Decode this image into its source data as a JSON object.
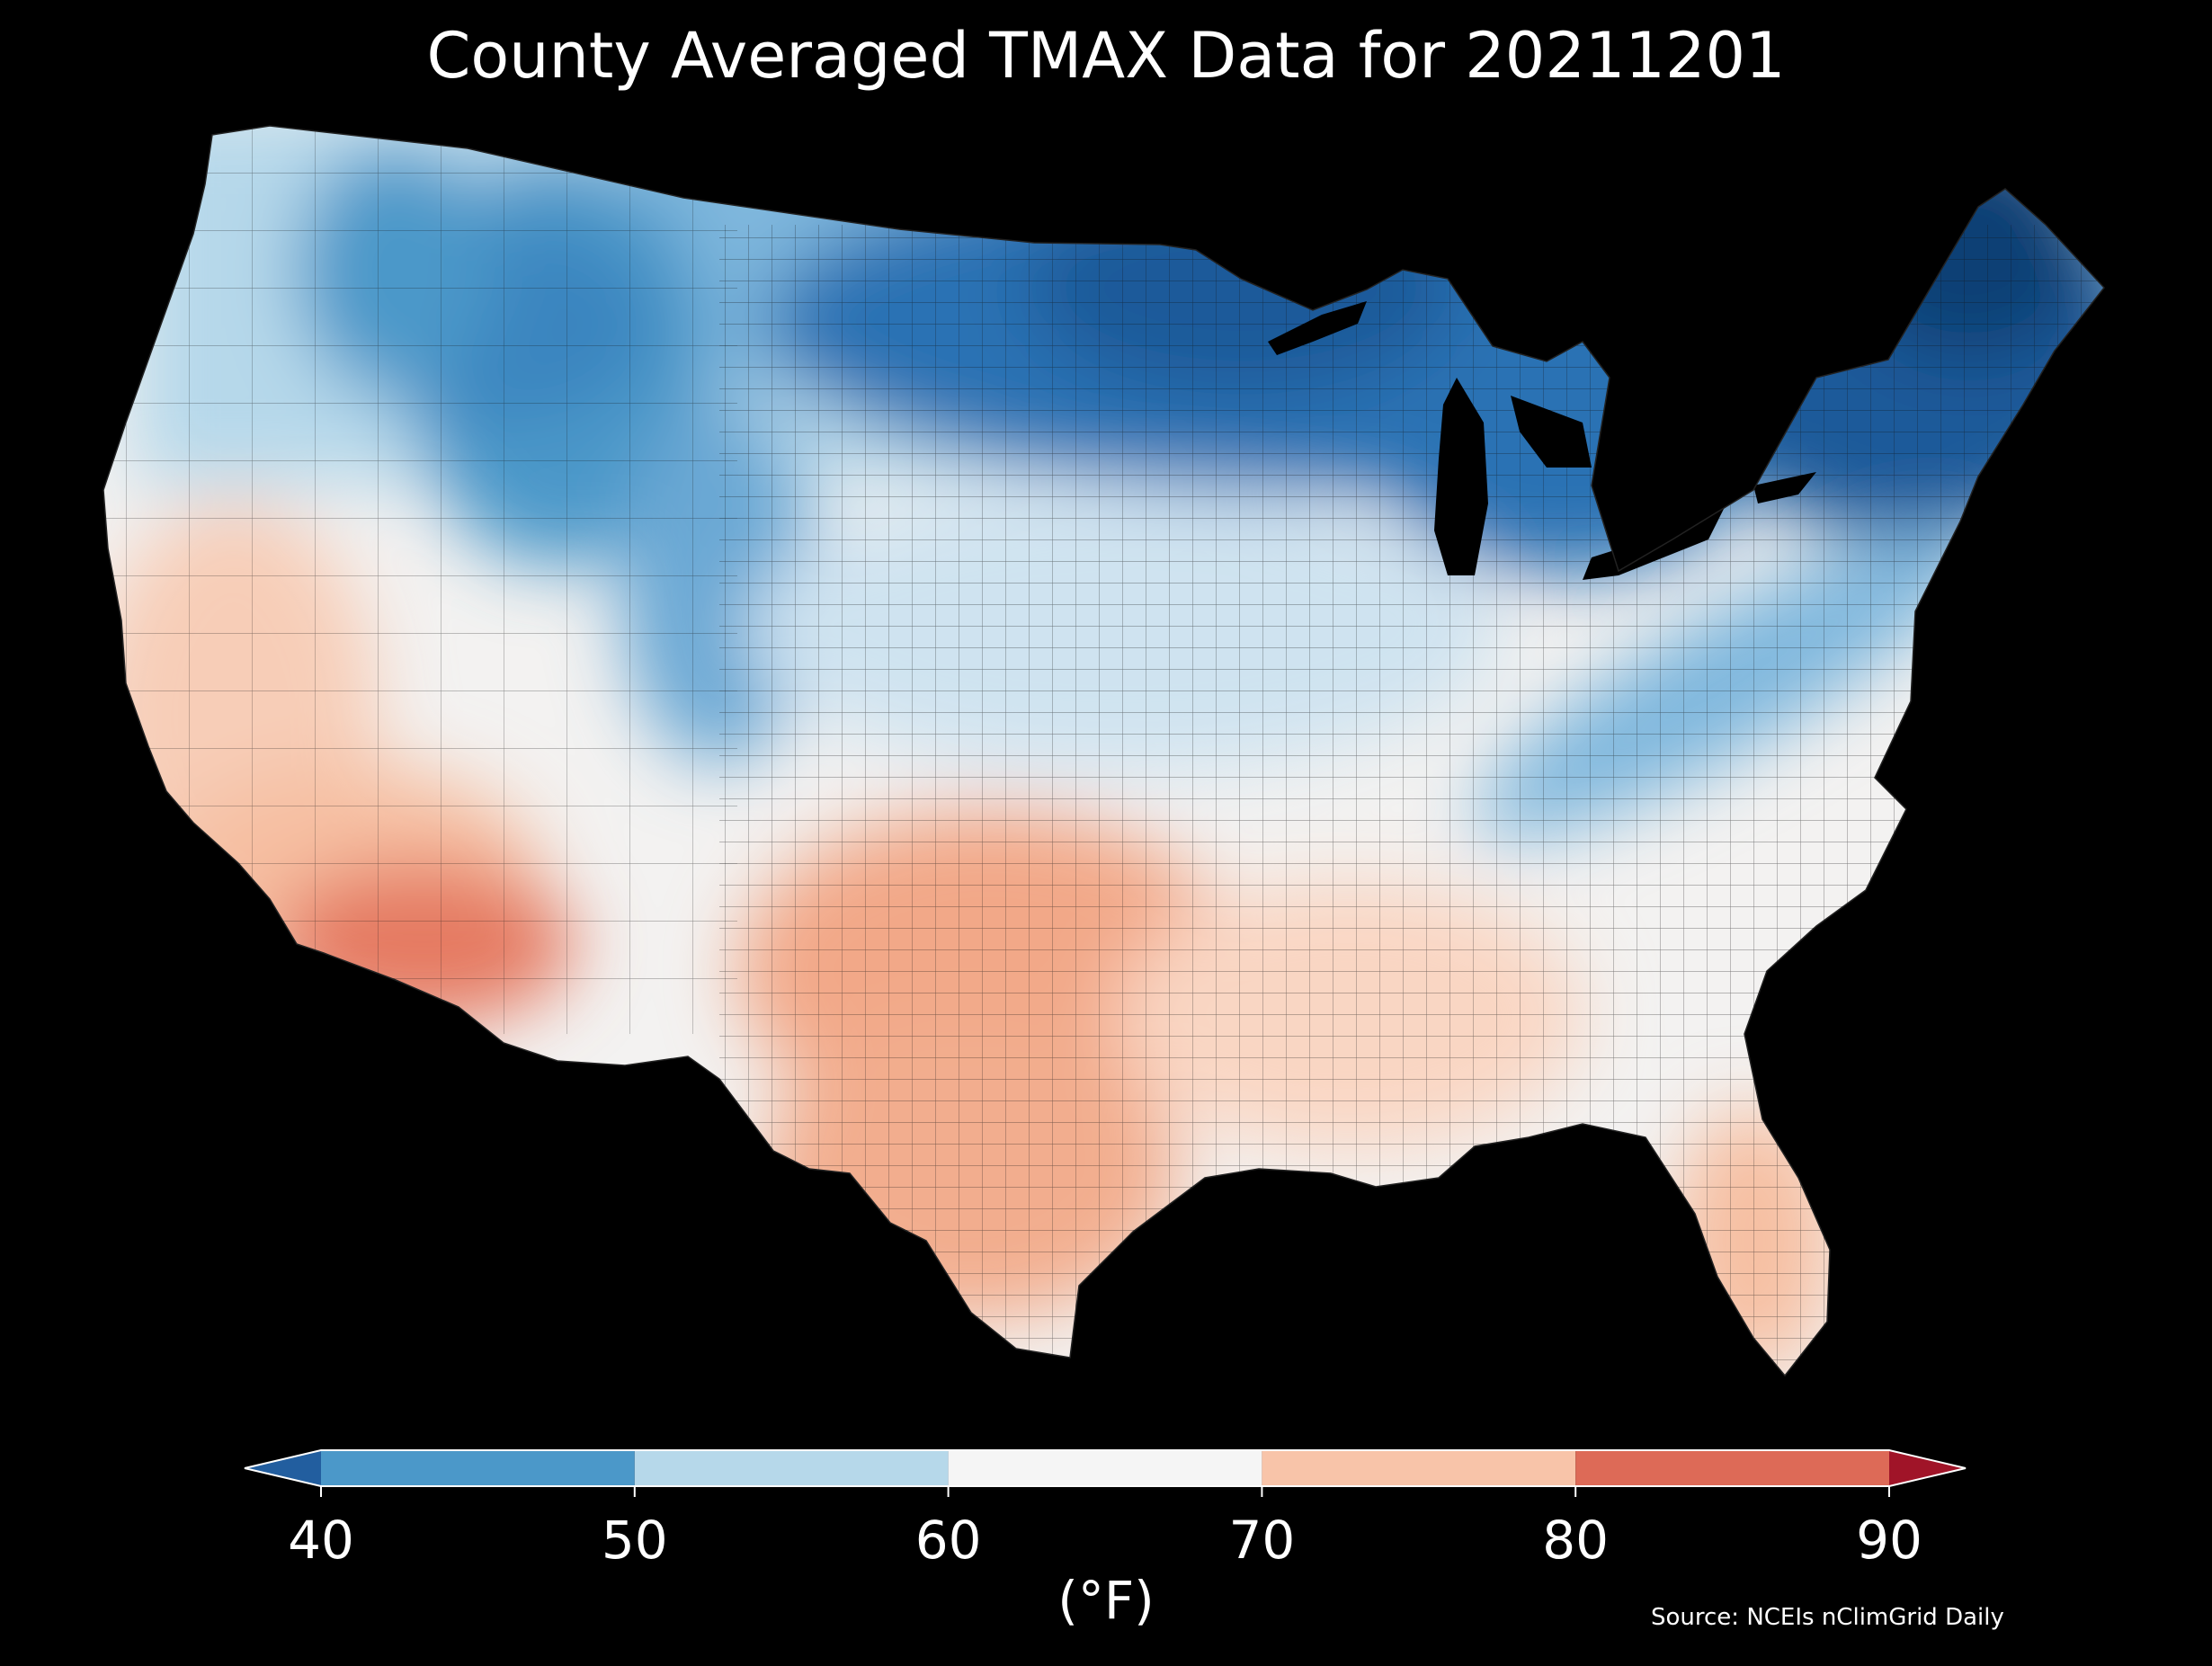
{
  "title": "County Averaged TMAX Data for 20211201",
  "colorbar": {
    "unit_label": "(°F)",
    "ticks": [
      "40",
      "50",
      "60",
      "70",
      "80",
      "90"
    ],
    "bins": [
      {
        "from": 40,
        "to": 50,
        "color": "#4b98c9"
      },
      {
        "from": 50,
        "to": 60,
        "color": "#b6d8ea"
      },
      {
        "from": 60,
        "to": 70,
        "color": "#f5f5f5"
      },
      {
        "from": 70,
        "to": 80,
        "color": "#f8c4a9"
      },
      {
        "from": 80,
        "to": 90,
        "color": "#dd6a57"
      }
    ],
    "under_color": "#225e9f",
    "over_color": "#a01428",
    "extend": "both"
  },
  "source": "Source: NCEIs nClimGrid Daily",
  "map_colors": {
    "background": "#000000",
    "county_border": "#111111",
    "deep_cold": "#0f3f75",
    "cold": "#2a72b4",
    "cool": "#7fb7dd",
    "mild_cool": "#cfe3f0",
    "neutral": "#f3f2f1",
    "warm": "#f6bfa2",
    "hot": "#e57a62"
  }
}
